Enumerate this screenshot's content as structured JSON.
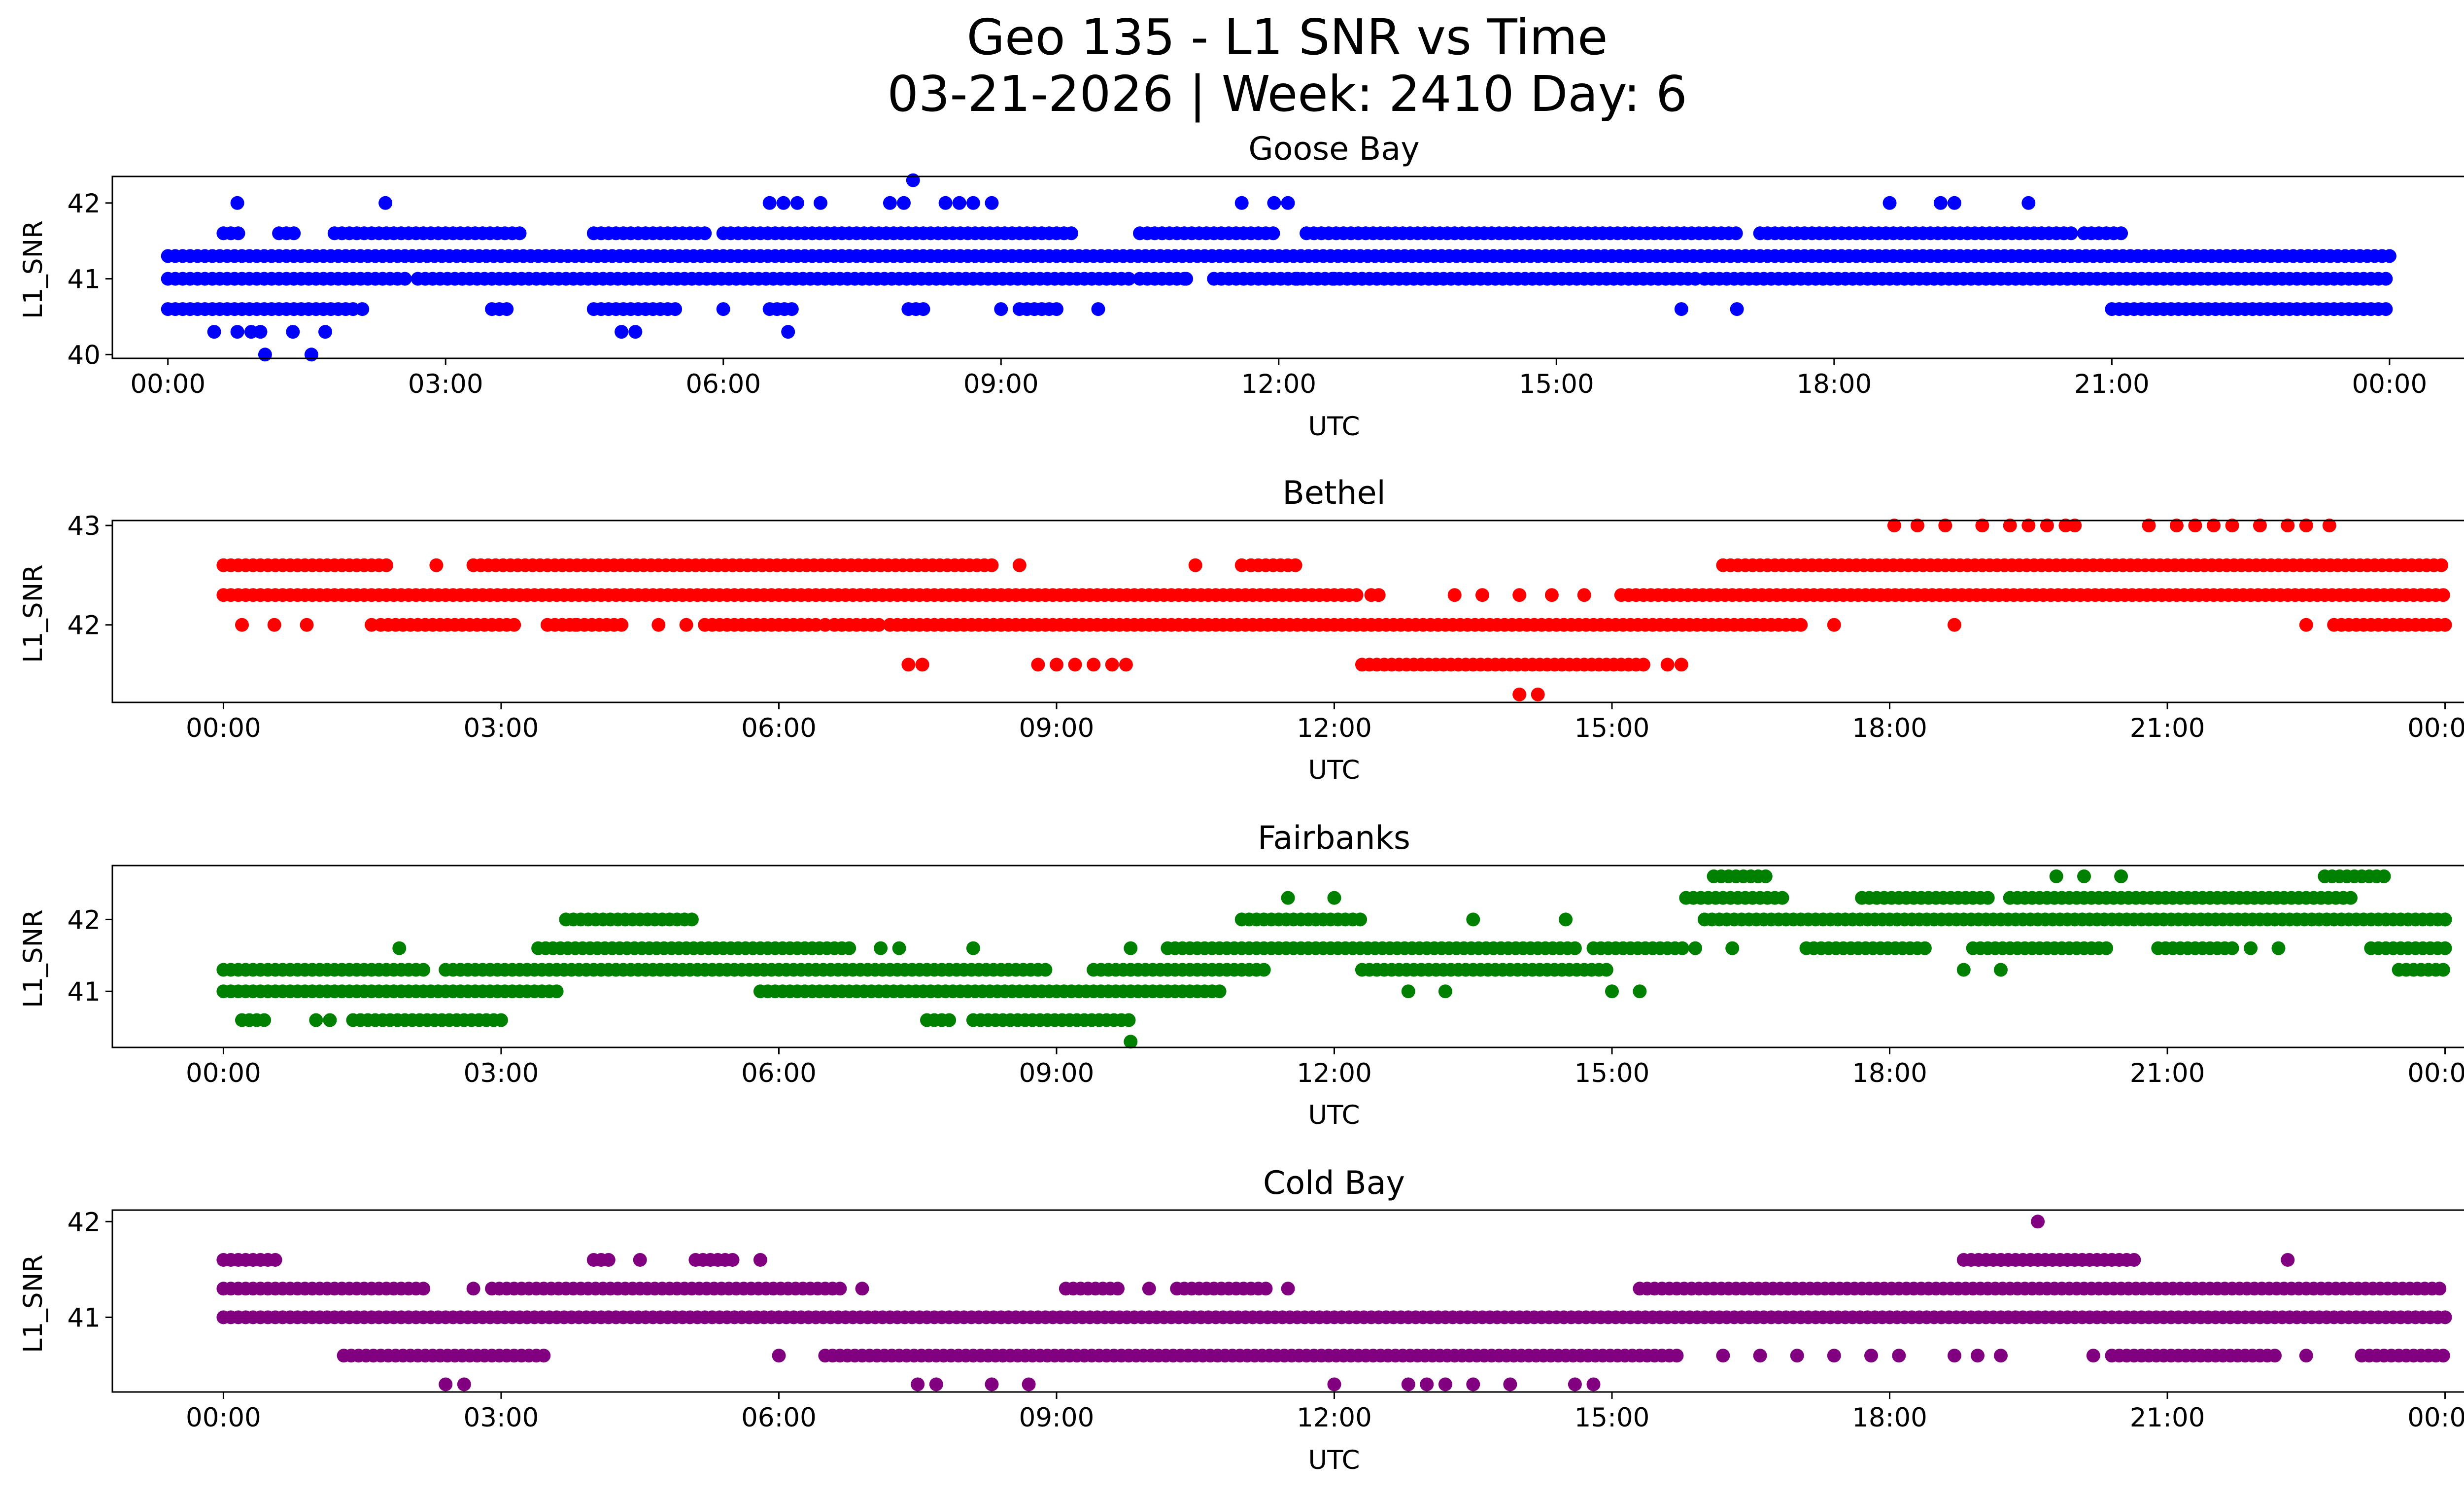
{
  "figure": {
    "title_line1": "Geo 135 - L1 SNR vs Time",
    "title_line2": "03-21-2026 | Week: 2410 Day: 6"
  },
  "chart_data": [
    {
      "type": "scatter",
      "title": "Goose Bay",
      "xlabel": "UTC",
      "ylabel": "L1_SNR",
      "color": "#0000ff",
      "x_unit": "hours UTC",
      "xlim": [
        -0.6,
        25.8
      ],
      "ylim": [
        39.95,
        42.35
      ],
      "xticks": [
        0,
        3,
        6,
        9,
        12,
        15,
        18,
        21,
        24
      ],
      "xtick_labels": [
        "00:00",
        "03:00",
        "06:00",
        "09:00",
        "12:00",
        "15:00",
        "18:00",
        "21:00",
        "00:00"
      ],
      "yticks": [
        40,
        41,
        42
      ],
      "ytick_labels": [
        "40",
        "41",
        "42"
      ],
      "bands": [
        {
          "y": 41.3,
          "segments": [
            [
              0,
              24
            ]
          ]
        },
        {
          "y": 41.0,
          "segments": [
            [
              0,
              2.6
            ],
            [
              2.7,
              10.4
            ],
            [
              10.5,
              11.0
            ],
            [
              11.3,
              16.5
            ],
            [
              16.6,
              24
            ]
          ]
        },
        {
          "y": 41.6,
          "segments": [
            [
              0.6,
              0.8
            ],
            [
              1.2,
              1.4
            ],
            [
              1.8,
              3.8
            ],
            [
              4.6,
              5.8
            ],
            [
              6.0,
              9.8
            ],
            [
              10.5,
              12.0
            ],
            [
              12.3,
              17.0
            ],
            [
              17.2,
              20.6
            ],
            [
              20.7,
              21.1
            ]
          ]
        },
        {
          "y": 40.6,
          "segments": [
            [
              0,
              2.0
            ],
            [
              3.5,
              3.7
            ],
            [
              4.6,
              5.5
            ],
            [
              6.5,
              6.8
            ],
            [
              8.0,
              8.2
            ],
            [
              9.2,
              9.6
            ],
            [
              21.0,
              24
            ]
          ]
        }
      ],
      "points": [
        {
          "x": 0.75,
          "y": 42.0
        },
        {
          "x": 2.35,
          "y": 42.0
        },
        {
          "x": 6.5,
          "y": 42.0
        },
        {
          "x": 6.65,
          "y": 42.0
        },
        {
          "x": 6.8,
          "y": 42.0
        },
        {
          "x": 7.05,
          "y": 42.0
        },
        {
          "x": 7.8,
          "y": 42.0
        },
        {
          "x": 7.95,
          "y": 42.0
        },
        {
          "x": 8.4,
          "y": 42.0
        },
        {
          "x": 8.55,
          "y": 42.0
        },
        {
          "x": 8.7,
          "y": 42.0
        },
        {
          "x": 8.9,
          "y": 42.0
        },
        {
          "x": 11.6,
          "y": 42.0
        },
        {
          "x": 11.95,
          "y": 42.0
        },
        {
          "x": 12.1,
          "y": 42.0
        },
        {
          "x": 18.6,
          "y": 42.0
        },
        {
          "x": 19.15,
          "y": 42.0
        },
        {
          "x": 19.3,
          "y": 42.0
        },
        {
          "x": 20.1,
          "y": 42.0
        },
        {
          "x": 8.05,
          "y": 42.3
        },
        {
          "x": 0.5,
          "y": 40.3
        },
        {
          "x": 0.75,
          "y": 40.3
        },
        {
          "x": 0.9,
          "y": 40.3
        },
        {
          "x": 1.0,
          "y": 40.3
        },
        {
          "x": 1.35,
          "y": 40.3
        },
        {
          "x": 1.7,
          "y": 40.3
        },
        {
          "x": 4.9,
          "y": 40.3
        },
        {
          "x": 5.05,
          "y": 40.3
        },
        {
          "x": 6.7,
          "y": 40.3
        },
        {
          "x": 1.05,
          "y": 40.0
        },
        {
          "x": 1.55,
          "y": 40.0
        },
        {
          "x": 2.1,
          "y": 40.6
        },
        {
          "x": 6.0,
          "y": 40.6
        },
        {
          "x": 9.0,
          "y": 40.6
        },
        {
          "x": 10.05,
          "y": 40.6
        },
        {
          "x": 16.35,
          "y": 40.6
        },
        {
          "x": 16.95,
          "y": 40.6
        },
        {
          "x": 11.0,
          "y": 41.0
        },
        {
          "x": 12.2,
          "y": 41.0
        },
        {
          "x": 12.6,
          "y": 41.0
        },
        {
          "x": 12.9,
          "y": 41.0
        },
        {
          "x": 13.3,
          "y": 41.0
        },
        {
          "x": 13.7,
          "y": 41.0
        }
      ]
    },
    {
      "type": "scatter",
      "title": "Bethel",
      "xlabel": "UTC",
      "ylabel": "L1_SNR",
      "color": "#ff0000",
      "x_unit": "hours UTC",
      "xlim": [
        -1.2,
        25.2
      ],
      "ylim": [
        41.22,
        43.05
      ],
      "xticks": [
        0,
        3,
        6,
        9,
        12,
        15,
        18,
        21,
        24
      ],
      "xtick_labels": [
        "00:00",
        "03:00",
        "06:00",
        "09:00",
        "12:00",
        "15:00",
        "18:00",
        "21:00",
        "00:00"
      ],
      "yticks": [
        42,
        43
      ],
      "ytick_labels": [
        "42",
        "43"
      ],
      "bands": [
        {
          "y": 42.3,
          "segments": [
            [
              0,
              12.3
            ],
            [
              12.4,
              12.5
            ],
            [
              15.1,
              24
            ]
          ]
        },
        {
          "y": 42.0,
          "segments": [
            [
              1.7,
              3.2
            ],
            [
              3.5,
              4.3
            ],
            [
              5.2,
              6.4
            ],
            [
              6.6,
              7.1
            ],
            [
              7.2,
              17.1
            ],
            [
              22.8,
              24
            ]
          ]
        },
        {
          "y": 42.6,
          "segments": [
            [
              0,
              1.8
            ],
            [
              2.7,
              8.3
            ],
            [
              11.1,
              11.6
            ],
            [
              16.2,
              24
            ]
          ]
        },
        {
          "y": 41.6,
          "segments": [
            [
              12.3,
              15.4
            ]
          ]
        }
      ],
      "points": [
        {
          "x": 0.2,
          "y": 42.0
        },
        {
          "x": 0.55,
          "y": 42.0
        },
        {
          "x": 0.9,
          "y": 42.0
        },
        {
          "x": 1.6,
          "y": 42.0
        },
        {
          "x": 3.8,
          "y": 42.0
        },
        {
          "x": 4.7,
          "y": 42.0
        },
        {
          "x": 5.0,
          "y": 42.0
        },
        {
          "x": 6.5,
          "y": 42.0
        },
        {
          "x": 17.4,
          "y": 42.0
        },
        {
          "x": 18.7,
          "y": 42.0
        },
        {
          "x": 22.5,
          "y": 42.0
        },
        {
          "x": 2.3,
          "y": 42.6
        },
        {
          "x": 8.6,
          "y": 42.6
        },
        {
          "x": 10.5,
          "y": 42.6
        },
        {
          "x": 11.0,
          "y": 42.6
        },
        {
          "x": 14.0,
          "y": 42.3
        },
        {
          "x": 14.35,
          "y": 42.3
        },
        {
          "x": 14.7,
          "y": 42.3
        },
        {
          "x": 13.3,
          "y": 42.3
        },
        {
          "x": 13.6,
          "y": 42.3
        },
        {
          "x": 7.4,
          "y": 41.6
        },
        {
          "x": 7.55,
          "y": 41.6
        },
        {
          "x": 8.8,
          "y": 41.6
        },
        {
          "x": 9.0,
          "y": 41.6
        },
        {
          "x": 9.2,
          "y": 41.6
        },
        {
          "x": 9.4,
          "y": 41.6
        },
        {
          "x": 9.6,
          "y": 41.6
        },
        {
          "x": 9.75,
          "y": 41.6
        },
        {
          "x": 15.6,
          "y": 41.6
        },
        {
          "x": 15.75,
          "y": 41.6
        },
        {
          "x": 14.0,
          "y": 41.3
        },
        {
          "x": 14.2,
          "y": 41.3
        },
        {
          "x": 18.05,
          "y": 43.0
        },
        {
          "x": 18.3,
          "y": 43.0
        },
        {
          "x": 18.6,
          "y": 43.0
        },
        {
          "x": 19.0,
          "y": 43.0
        },
        {
          "x": 19.3,
          "y": 43.0
        },
        {
          "x": 19.5,
          "y": 43.0
        },
        {
          "x": 19.7,
          "y": 43.0
        },
        {
          "x": 19.9,
          "y": 43.0
        },
        {
          "x": 20.0,
          "y": 43.0
        },
        {
          "x": 20.8,
          "y": 43.0
        },
        {
          "x": 21.1,
          "y": 43.0
        },
        {
          "x": 21.3,
          "y": 43.0
        },
        {
          "x": 21.5,
          "y": 43.0
        },
        {
          "x": 21.7,
          "y": 43.0
        },
        {
          "x": 22.0,
          "y": 43.0
        },
        {
          "x": 22.3,
          "y": 43.0
        },
        {
          "x": 22.5,
          "y": 43.0
        },
        {
          "x": 22.75,
          "y": 43.0
        }
      ]
    },
    {
      "type": "scatter",
      "title": "Fairbanks",
      "xlabel": "UTC",
      "ylabel": "L1_SNR",
      "color": "#008000",
      "x_unit": "hours UTC",
      "xlim": [
        -1.2,
        25.2
      ],
      "ylim": [
        40.22,
        42.75
      ],
      "xticks": [
        0,
        3,
        6,
        9,
        12,
        15,
        18,
        21,
        24
      ],
      "xtick_labels": [
        "00:00",
        "03:00",
        "06:00",
        "09:00",
        "12:00",
        "15:00",
        "18:00",
        "21:00",
        "00:00"
      ],
      "yticks": [
        41,
        42
      ],
      "ytick_labels": [
        "41",
        "42"
      ],
      "bands": [
        {
          "y": 41.3,
          "segments": [
            [
              0,
              2.2
            ],
            [
              2.4,
              8.9
            ],
            [
              9.4,
              11.3
            ],
            [
              12.3,
              15.0
            ]
          ]
        },
        {
          "y": 41.0,
          "segments": [
            [
              0,
              3.6
            ],
            [
              5.8,
              10.8
            ]
          ]
        },
        {
          "y": 41.6,
          "segments": [
            [
              3.4,
              6.8
            ],
            [
              10.2,
              14.6
            ],
            [
              14.8,
              15.8
            ]
          ]
        },
        {
          "y": 42.0,
          "segments": [
            [
              3.7,
              5.1
            ],
            [
              11.0,
              12.3
            ],
            [
              16.0,
              24
            ]
          ]
        },
        {
          "y": 42.3,
          "segments": [
            [
              15.8,
              16.9
            ],
            [
              17.7,
              19.1
            ],
            [
              19.3,
              23.0
            ]
          ]
        },
        {
          "y": 40.6,
          "segments": [
            [
              0.2,
              0.5
            ],
            [
              1.4,
              3.0
            ],
            [
              7.6,
              7.9
            ],
            [
              8.1,
              9.8
            ]
          ]
        },
        {
          "y": 42.6,
          "segments": [
            [
              16.1,
              16.7
            ],
            [
              22.7,
              23.4
            ]
          ]
        },
        {
          "y": 41.6,
          "segments": [
            [
              17.1,
              18.4
            ],
            [
              18.9,
              20.4
            ],
            [
              20.9,
              21.7
            ],
            [
              23.2,
              24
            ]
          ]
        },
        {
          "y": 41.3,
          "segments": [
            [
              23.5,
              24
            ]
          ]
        }
      ],
      "points": [
        {
          "x": 1.9,
          "y": 41.6
        },
        {
          "x": 8.1,
          "y": 41.6
        },
        {
          "x": 9.8,
          "y": 41.6
        },
        {
          "x": 7.1,
          "y": 41.6
        },
        {
          "x": 7.3,
          "y": 41.6
        },
        {
          "x": 9.8,
          "y": 40.3
        },
        {
          "x": 1.0,
          "y": 40.6
        },
        {
          "x": 1.15,
          "y": 40.6
        },
        {
          "x": 12.0,
          "y": 42.3
        },
        {
          "x": 11.5,
          "y": 42.3
        },
        {
          "x": 13.5,
          "y": 42.0
        },
        {
          "x": 14.5,
          "y": 42.0
        },
        {
          "x": 15.0,
          "y": 41.0
        },
        {
          "x": 15.3,
          "y": 41.0
        },
        {
          "x": 12.8,
          "y": 41.0
        },
        {
          "x": 13.2,
          "y": 41.0
        },
        {
          "x": 16.3,
          "y": 41.6
        },
        {
          "x": 18.8,
          "y": 41.3
        },
        {
          "x": 19.2,
          "y": 41.3
        },
        {
          "x": 21.9,
          "y": 41.6
        },
        {
          "x": 22.2,
          "y": 41.6
        },
        {
          "x": 19.8,
          "y": 42.6
        },
        {
          "x": 20.1,
          "y": 42.6
        },
        {
          "x": 20.5,
          "y": 42.6
        },
        {
          "x": 24.0,
          "y": 42.0
        },
        {
          "x": 15.9,
          "y": 41.6
        }
      ]
    },
    {
      "type": "scatter",
      "title": "Cold Bay",
      "xlabel": "UTC",
      "ylabel": "L1_SNR",
      "color": "#800080",
      "x_unit": "hours UTC",
      "xlim": [
        -1.2,
        25.2
      ],
      "ylim": [
        40.22,
        42.12
      ],
      "xticks": [
        0,
        3,
        6,
        9,
        12,
        15,
        18,
        21,
        24
      ],
      "xtick_labels": [
        "00:00",
        "03:00",
        "06:00",
        "09:00",
        "12:00",
        "15:00",
        "18:00",
        "21:00",
        "00:00"
      ],
      "yticks": [
        41,
        42
      ],
      "ytick_labels": [
        "41",
        "42"
      ],
      "bands": [
        {
          "y": 41.0,
          "segments": [
            [
              0,
              24
            ]
          ]
        },
        {
          "y": 41.3,
          "segments": [
            [
              0,
              2.2
            ],
            [
              2.9,
              6.7
            ],
            [
              9.1,
              9.7
            ],
            [
              10.3,
              11.3
            ],
            [
              15.3,
              24
            ]
          ]
        },
        {
          "y": 40.6,
          "segments": [
            [
              1.3,
              3.5
            ],
            [
              6.5,
              15.7
            ],
            [
              20.4,
              22.2
            ],
            [
              23.1,
              24
            ]
          ]
        },
        {
          "y": 41.6,
          "segments": [
            [
              0,
              0.6
            ],
            [
              4.0,
              4.2
            ],
            [
              5.1,
              5.5
            ],
            [
              18.8,
              20.7
            ]
          ]
        }
      ],
      "points": [
        {
          "x": 4.5,
          "y": 41.6
        },
        {
          "x": 5.8,
          "y": 41.6
        },
        {
          "x": 2.7,
          "y": 41.3
        },
        {
          "x": 6.9,
          "y": 41.3
        },
        {
          "x": 10.0,
          "y": 41.3
        },
        {
          "x": 11.5,
          "y": 41.3
        },
        {
          "x": 22.3,
          "y": 41.6
        },
        {
          "x": 19.6,
          "y": 42.0
        },
        {
          "x": 6.0,
          "y": 40.6
        },
        {
          "x": 16.2,
          "y": 40.6
        },
        {
          "x": 16.6,
          "y": 40.6
        },
        {
          "x": 17.0,
          "y": 40.6
        },
        {
          "x": 17.4,
          "y": 40.6
        },
        {
          "x": 17.8,
          "y": 40.6
        },
        {
          "x": 18.1,
          "y": 40.6
        },
        {
          "x": 18.7,
          "y": 40.6
        },
        {
          "x": 18.95,
          "y": 40.6
        },
        {
          "x": 19.2,
          "y": 40.6
        },
        {
          "x": 20.2,
          "y": 40.6
        },
        {
          "x": 22.5,
          "y": 40.6
        },
        {
          "x": 2.4,
          "y": 40.3
        },
        {
          "x": 2.6,
          "y": 40.3
        },
        {
          "x": 7.5,
          "y": 40.3
        },
        {
          "x": 7.7,
          "y": 40.3
        },
        {
          "x": 8.3,
          "y": 40.3
        },
        {
          "x": 8.7,
          "y": 40.3
        },
        {
          "x": 12.0,
          "y": 40.3
        },
        {
          "x": 12.8,
          "y": 40.3
        },
        {
          "x": 13.0,
          "y": 40.3
        },
        {
          "x": 13.2,
          "y": 40.3
        },
        {
          "x": 13.5,
          "y": 40.3
        },
        {
          "x": 13.9,
          "y": 40.3
        },
        {
          "x": 14.6,
          "y": 40.3
        },
        {
          "x": 14.8,
          "y": 40.3
        }
      ]
    }
  ]
}
